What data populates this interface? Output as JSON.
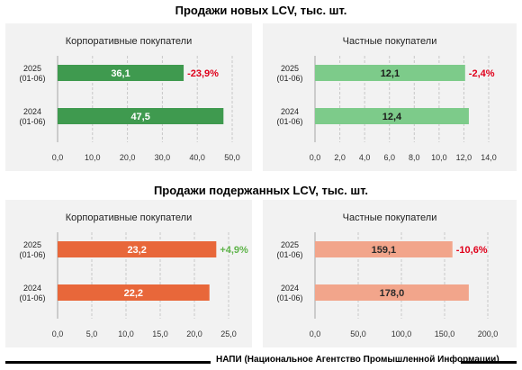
{
  "titles": {
    "new": "Продажи новых LCV, тыс. шт.",
    "used": "Продажи подержанных LCV, тыс. шт."
  },
  "footer": "НАПИ (Национальное Агентство Промышленной Информации)",
  "colors": {
    "new_corporate": "#3f9a4f",
    "new_private": "#7dcb8a",
    "used_corporate": "#e8673a",
    "used_private": "#f2a58b",
    "negative_change": "#e0001b",
    "positive_change": "#5fb44a",
    "panel_bg": "#f2f2f2",
    "grid": "#c8c8c8"
  },
  "chart_data": [
    {
      "type": "bar",
      "orientation": "horizontal",
      "title": "Корпоративные покупатели",
      "categories": [
        [
          "2025",
          "(01-06)"
        ],
        [
          "2024",
          "(01-06)"
        ]
      ],
      "values": [
        36.1,
        47.5
      ],
      "labels": [
        "36,1",
        "47,5"
      ],
      "change": {
        "text": "-23,9%",
        "sign": "negative"
      },
      "xlim": [
        0,
        50
      ],
      "ticks": [
        "0,0",
        "10,0",
        "20,0",
        "30,0",
        "40,0",
        "50,0"
      ],
      "tick_values": [
        0,
        10,
        20,
        30,
        40,
        50
      ],
      "color": "#3f9a4f",
      "grid": true
    },
    {
      "type": "bar",
      "orientation": "horizontal",
      "title": "Частные покупатели",
      "categories": [
        [
          "2025",
          "(01-06)"
        ],
        [
          "2024",
          "(01-06)"
        ]
      ],
      "values": [
        12.1,
        12.4
      ],
      "labels": [
        "12,1",
        "12,4"
      ],
      "change": {
        "text": "-2,4%",
        "sign": "negative"
      },
      "xlim": [
        0,
        14
      ],
      "ticks": [
        "0,0",
        "2,0",
        "4,0",
        "6,0",
        "8,0",
        "10,0",
        "12,0",
        "14,0"
      ],
      "tick_values": [
        0,
        2,
        4,
        6,
        8,
        10,
        12,
        14
      ],
      "color": "#7dcb8a",
      "grid": true
    },
    {
      "type": "bar",
      "orientation": "horizontal",
      "title": "Корпоративные покупатели",
      "categories": [
        [
          "2025",
          "(01-06)"
        ],
        [
          "2024",
          "(01-06)"
        ]
      ],
      "values": [
        23.2,
        22.2
      ],
      "labels": [
        "23,2",
        "22,2"
      ],
      "change": {
        "text": "+4,9%",
        "sign": "positive"
      },
      "xlim": [
        0,
        25
      ],
      "ticks": [
        "0,0",
        "5,0",
        "10,0",
        "15,0",
        "20,0",
        "25,0"
      ],
      "tick_values": [
        0,
        5,
        10,
        15,
        20,
        25
      ],
      "color": "#e8673a",
      "grid": true
    },
    {
      "type": "bar",
      "orientation": "horizontal",
      "title": "Частные покупатели",
      "categories": [
        [
          "2025",
          "(01-06)"
        ],
        [
          "2024",
          "(01-06)"
        ]
      ],
      "values": [
        159.1,
        178.0
      ],
      "labels": [
        "159,1",
        "178,0"
      ],
      "change": {
        "text": "-10,6%",
        "sign": "negative"
      },
      "xlim": [
        0,
        200
      ],
      "ticks": [
        "0,0",
        "50,0",
        "100,0",
        "150,0",
        "200,0"
      ],
      "tick_values": [
        0,
        50,
        100,
        150,
        200
      ],
      "color": "#f2a58b",
      "grid": true
    }
  ]
}
